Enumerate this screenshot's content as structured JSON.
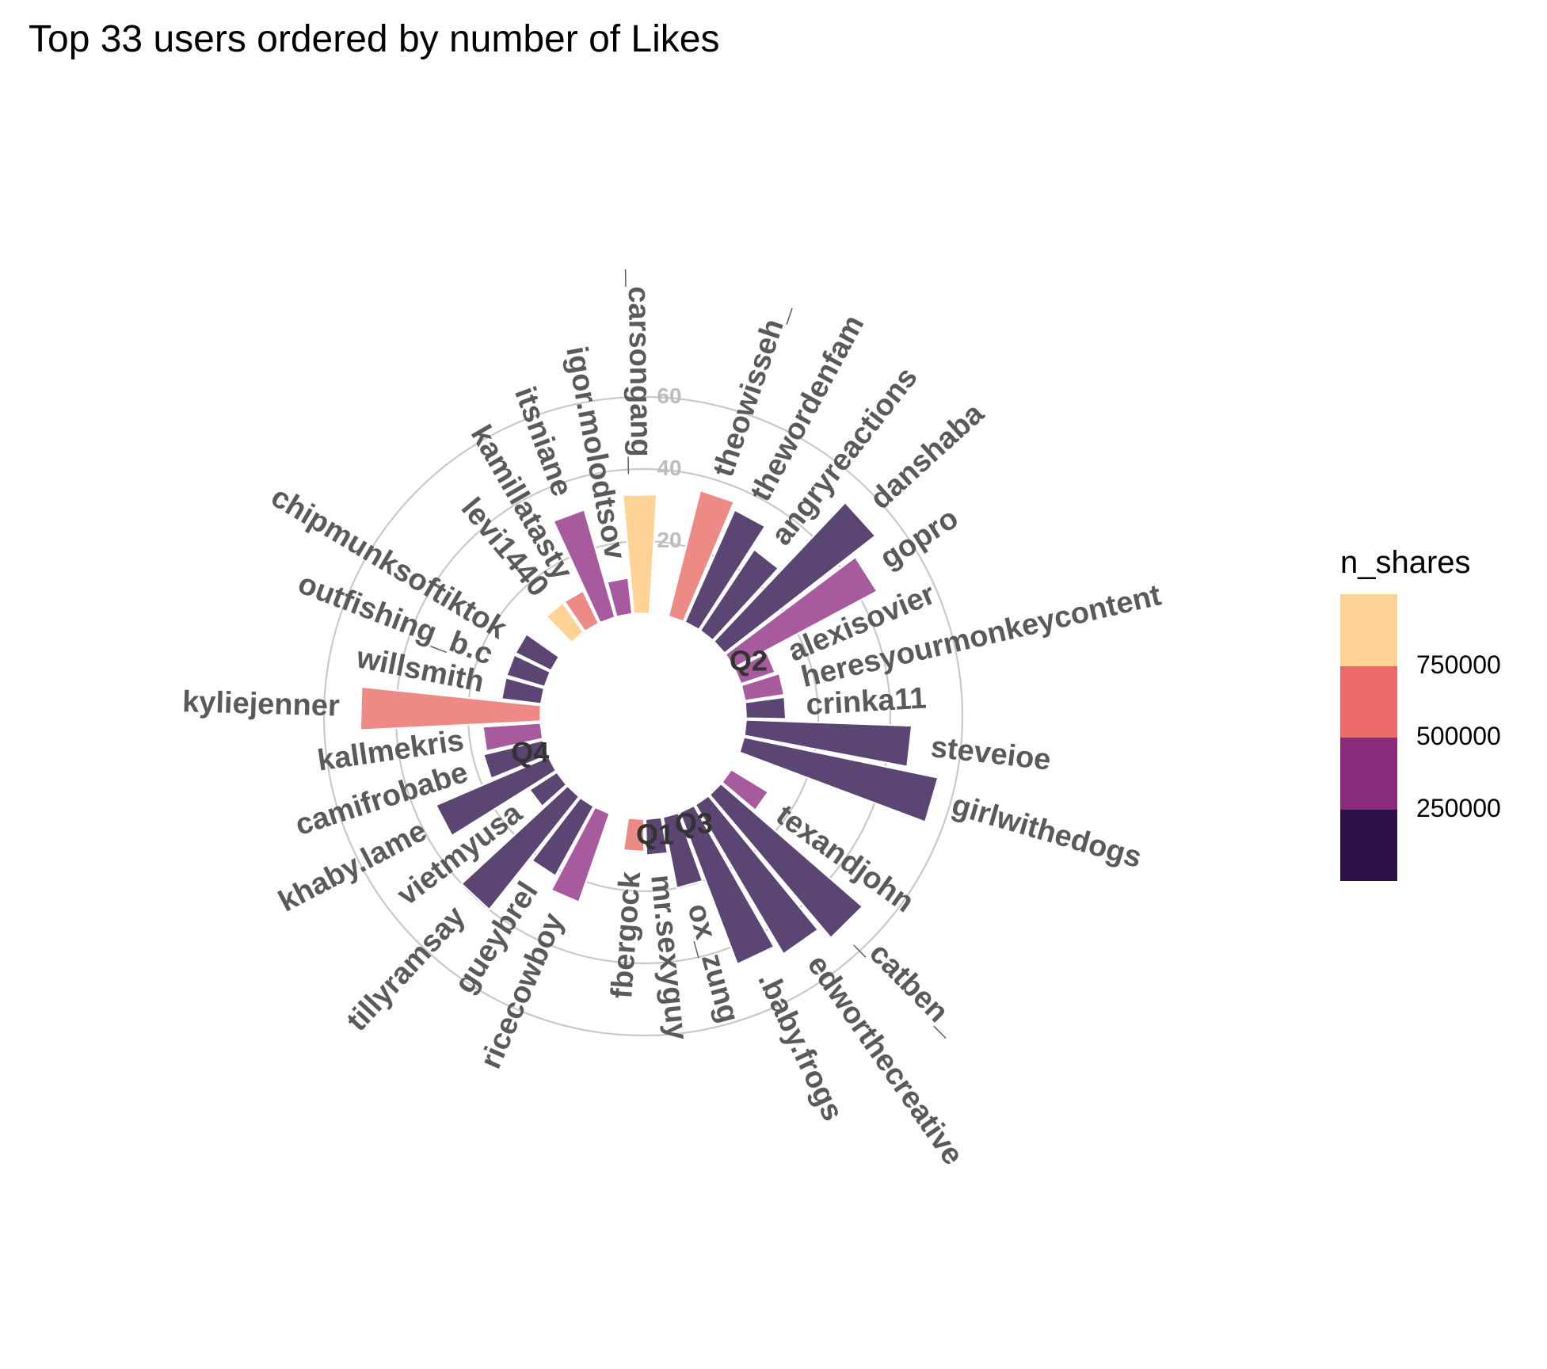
{
  "chart_data": {
    "type": "bar",
    "coord": "polar",
    "title": "Top 33 users ordered by number of Likes",
    "radial_ticks": [
      20,
      40,
      60
    ],
    "groups": [
      "Q1",
      "Q2",
      "Q3",
      "Q4"
    ],
    "users": [
      {
        "name": "_carsongang_",
        "group": "Q1",
        "value": 33,
        "color": "#FED395"
      },
      {
        "name": "theowisseh_",
        "group": "Q2",
        "value": 36,
        "color": "#EE8A86"
      },
      {
        "name": "thewordenfam",
        "group": "Q2",
        "value": 34,
        "color": "#5A4573"
      },
      {
        "name": "angryreactions",
        "group": "Q2",
        "value": 27,
        "color": "#5A4573"
      },
      {
        "name": "danshaba",
        "group": "Q2",
        "value": 53,
        "color": "#5A4573"
      },
      {
        "name": "gopro",
        "group": "Q2",
        "value": 45,
        "color": "#A75A9E"
      },
      {
        "name": "alexisovier",
        "group": "Q2",
        "value": 10,
        "color": "#A75A9E"
      },
      {
        "name": "heresyourmonkeycontent",
        "group": "Q2",
        "value": 11,
        "color": "#A75A9E"
      },
      {
        "name": "crinka11",
        "group": "Q2",
        "value": 11,
        "color": "#5A4573"
      },
      {
        "name": "steveioe",
        "group": "Q2",
        "value": 46,
        "color": "#5A4573"
      },
      {
        "name": "girlwithedogs",
        "group": "Q2",
        "value": 55,
        "color": "#5A4573"
      },
      {
        "name": "texandjohn",
        "group": "Q3",
        "value": 12,
        "color": "#A75A9E"
      },
      {
        "name": "_catben_",
        "group": "Q3",
        "value": 52,
        "color": "#5A4573"
      },
      {
        "name": "edworthecreative",
        "group": "Q3",
        "value": 48,
        "color": "#5A4573"
      },
      {
        "name": ".baby.frogs",
        "group": "Q3",
        "value": 45,
        "color": "#5A4573"
      },
      {
        "name": "ox_zung",
        "group": "Q3",
        "value": 20,
        "color": "#5A4573"
      },
      {
        "name": "mr.sexyguy",
        "group": "Q3",
        "value": 10,
        "color": "#5A4573"
      },
      {
        "name": "fbergock",
        "group": "Q3",
        "value": 9,
        "color": "#EE8A86"
      },
      {
        "name": "ricecowboy",
        "group": "Q4",
        "value": 26,
        "color": "#A75A9E"
      },
      {
        "name": "gueybrel",
        "group": "Q4",
        "value": 22,
        "color": "#5A4573"
      },
      {
        "name": "tillyramsay",
        "group": "Q4",
        "value": 40,
        "color": "#5A4573"
      },
      {
        "name": "vietmyusa",
        "group": "Q4",
        "value": 9,
        "color": "#5A4573"
      },
      {
        "name": "khaby.lame",
        "group": "Q4",
        "value": 34,
        "color": "#5A4573"
      },
      {
        "name": "camifrobabe",
        "group": "Q4",
        "value": 17,
        "color": "#5A4573"
      },
      {
        "name": "kallmekris",
        "group": "Q4",
        "value": 16,
        "color": "#A75A9E"
      },
      {
        "name": "kyliejenner",
        "group": "Q4",
        "value": 50,
        "color": "#EE8A86"
      },
      {
        "name": "willsmith",
        "group": "Q4",
        "value": 11,
        "color": "#5A4573"
      },
      {
        "name": "outfishing_b.c",
        "group": "Q4",
        "value": 11,
        "color": "#5A4573"
      },
      {
        "name": "chipmunksoftiktok",
        "group": "Q4",
        "value": 11,
        "color": "#5A4573"
      },
      {
        "name": "levi1440",
        "group": "Q1",
        "value": 10,
        "color": "#FED395"
      },
      {
        "name": "kamillatasty",
        "group": "Q1",
        "value": 10,
        "color": "#EE8A86"
      },
      {
        "name": "itsniane",
        "group": "Q1",
        "value": 31,
        "color": "#A75A9E"
      },
      {
        "name": "igor.molodtsov",
        "group": "Q1",
        "value": 10,
        "color": "#A75A9E"
      }
    ],
    "legend": {
      "title": "n_shares",
      "placement": "right",
      "ticks": [
        "750000",
        "500000",
        "250000"
      ],
      "colors": [
        "#FED395",
        "#EC6A6A",
        "#8A2A7C",
        "#2D1146"
      ]
    }
  }
}
